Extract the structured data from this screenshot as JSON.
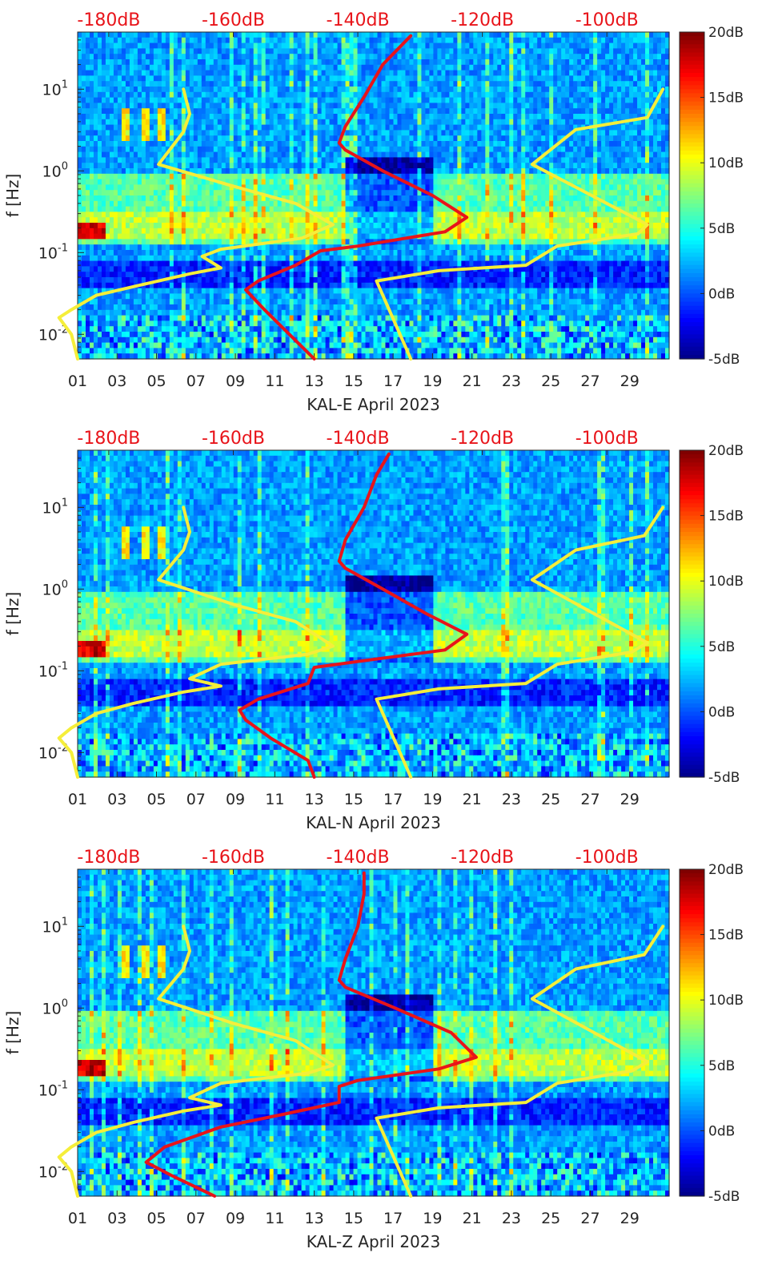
{
  "chart_data": [
    {
      "type": "heatmap",
      "xlabel": "KAL-E April 2023",
      "ylabel": "f [Hz]",
      "x_ticks": [
        "01",
        "03",
        "05",
        "07",
        "09",
        "11",
        "13",
        "15",
        "17",
        "19",
        "21",
        "23",
        "25",
        "27",
        "29"
      ],
      "xlim": [
        1,
        31
      ],
      "y_scale": "log",
      "ylim": [
        0.005,
        50
      ],
      "y_ticks": [
        {
          "base": "10",
          "exp": "-2",
          "value": 0.01
        },
        {
          "base": "10",
          "exp": "-1",
          "value": 0.1
        },
        {
          "base": "10",
          "exp": "0",
          "value": 1
        },
        {
          "base": "10",
          "exp": "1",
          "value": 10
        }
      ],
      "top_axis_labels": [
        "-180dB",
        "-160dB",
        "-140dB",
        "-120dB",
        "-100dB"
      ],
      "top_axis_label_color": "#e8141a",
      "top_axis_range_dB": [
        -185,
        -90
      ],
      "colorbar": {
        "labels": [
          "20dB",
          "15dB",
          "10dB",
          "5dB",
          "0dB",
          "-5dB"
        ],
        "range_dB": [
          -5,
          20
        ],
        "colormap": "jet"
      },
      "series": [
        {
          "color": "#e8141a",
          "points": [
            [
              -131.5,
              45
            ],
            [
              -136,
              20
            ],
            [
              -139,
              8
            ],
            [
              -142,
              3.5
            ],
            [
              -143,
              2.2
            ],
            [
              -142,
              1.8
            ],
            [
              -136,
              1
            ],
            [
              -128,
              0.5
            ],
            [
              -122.5,
              0.27
            ],
            [
              -126,
              0.18
            ],
            [
              -140,
              0.12
            ],
            [
              -146,
              0.105
            ],
            [
              -150,
              0.07
            ],
            [
              -156,
              0.045
            ],
            [
              -158,
              0.035
            ],
            [
              -155,
              0.02
            ],
            [
              -151,
              0.01
            ],
            [
              -147,
              0.005
            ]
          ]
        },
        {
          "color": "#f5ee3a",
          "points": [
            [
              -168,
              10
            ],
            [
              -167,
              5
            ],
            [
              -168,
              3
            ],
            [
              -172,
              1.2
            ],
            [
              -160,
              0.65
            ],
            [
              -150,
              0.4
            ],
            [
              -144,
              0.22
            ],
            [
              -149,
              0.15
            ],
            [
              -162,
              0.11
            ],
            [
              -165,
              0.09
            ],
            [
              -162,
              0.065
            ],
            [
              -167,
              0.055
            ],
            [
              -175,
              0.04
            ],
            [
              -182,
              0.03
            ],
            [
              -186,
              0.02
            ],
            [
              -188,
              0.016
            ],
            [
              -186,
              0.01
            ],
            [
              -185,
              0.005
            ]
          ]
        },
        {
          "color": "#f5ee3a",
          "points": [
            [
              -91,
              10
            ],
            [
              -93.5,
              4.5
            ],
            [
              -105,
              3.2
            ],
            [
              -112,
              1.2
            ],
            [
              -93.5,
              0.22
            ],
            [
              -95,
              0.17
            ],
            [
              -108,
              0.12
            ],
            [
              -113,
              0.07
            ],
            [
              -127,
              0.06
            ],
            [
              -137,
              0.045
            ],
            [
              -131.5,
              0.005
            ]
          ]
        }
      ]
    },
    {
      "type": "heatmap",
      "xlabel": "KAL-N April 2023",
      "ylabel": "f [Hz]",
      "x_ticks": [
        "01",
        "03",
        "05",
        "07",
        "09",
        "11",
        "13",
        "15",
        "17",
        "19",
        "21",
        "23",
        "25",
        "27",
        "29"
      ],
      "xlim": [
        1,
        31
      ],
      "y_scale": "log",
      "ylim": [
        0.005,
        50
      ],
      "y_ticks": [
        {
          "base": "10",
          "exp": "-2",
          "value": 0.01
        },
        {
          "base": "10",
          "exp": "-1",
          "value": 0.1
        },
        {
          "base": "10",
          "exp": "0",
          "value": 1
        },
        {
          "base": "10",
          "exp": "1",
          "value": 10
        }
      ],
      "top_axis_labels": [
        "-180dB",
        "-160dB",
        "-140dB",
        "-120dB",
        "-100dB"
      ],
      "top_axis_label_color": "#e8141a",
      "top_axis_range_dB": [
        -185,
        -90
      ],
      "colorbar": {
        "labels": [
          "20dB",
          "15dB",
          "10dB",
          "5dB",
          "0dB",
          "-5dB"
        ],
        "range_dB": [
          -5,
          20
        ],
        "colormap": "jet"
      },
      "series": [
        {
          "color": "#e8141a",
          "points": [
            [
              -135,
              45
            ],
            [
              -137,
              25
            ],
            [
              -139,
              10
            ],
            [
              -142,
              4
            ],
            [
              -143,
              2.2
            ],
            [
              -142,
              1.8
            ],
            [
              -136,
              1
            ],
            [
              -129,
              0.5
            ],
            [
              -122.5,
              0.28
            ],
            [
              -126,
              0.18
            ],
            [
              -140,
              0.13
            ],
            [
              -147,
              0.11
            ],
            [
              -148,
              0.07
            ],
            [
              -156,
              0.045
            ],
            [
              -159,
              0.033
            ],
            [
              -158,
              0.025
            ],
            [
              -154,
              0.015
            ],
            [
              -148,
              0.008
            ],
            [
              -147,
              0.005
            ]
          ]
        },
        {
          "color": "#f5ee3a",
          "points": [
            [
              -168,
              10
            ],
            [
              -167,
              5
            ],
            [
              -168,
              3
            ],
            [
              -172,
              1.3
            ],
            [
              -160,
              0.65
            ],
            [
              -150,
              0.4
            ],
            [
              -144,
              0.2
            ],
            [
              -148,
              0.16
            ],
            [
              -162,
              0.12
            ],
            [
              -167,
              0.08
            ],
            [
              -162,
              0.065
            ],
            [
              -168,
              0.055
            ],
            [
              -176,
              0.04
            ],
            [
              -182,
              0.03
            ],
            [
              -186,
              0.02
            ],
            [
              -188,
              0.015
            ],
            [
              -186,
              0.01
            ],
            [
              -185,
              0.005
            ]
          ]
        },
        {
          "color": "#f5ee3a",
          "points": [
            [
              -91,
              10
            ],
            [
              -94,
              4.5
            ],
            [
              -105,
              3
            ],
            [
              -112,
              1.3
            ],
            [
              -93.5,
              0.22
            ],
            [
              -96,
              0.17
            ],
            [
              -108,
              0.12
            ],
            [
              -113,
              0.07
            ],
            [
              -127,
              0.06
            ],
            [
              -137,
              0.045
            ],
            [
              -131.5,
              0.005
            ]
          ]
        }
      ]
    },
    {
      "type": "heatmap",
      "xlabel": "KAL-Z April 2023",
      "ylabel": "f [Hz]",
      "x_ticks": [
        "01",
        "03",
        "05",
        "07",
        "09",
        "11",
        "13",
        "15",
        "17",
        "19",
        "21",
        "23",
        "25",
        "27",
        "29"
      ],
      "xlim": [
        1,
        31
      ],
      "y_scale": "log",
      "ylim": [
        0.005,
        50
      ],
      "y_ticks": [
        {
          "base": "10",
          "exp": "-2",
          "value": 0.01
        },
        {
          "base": "10",
          "exp": "-1",
          "value": 0.1
        },
        {
          "base": "10",
          "exp": "0",
          "value": 1
        },
        {
          "base": "10",
          "exp": "1",
          "value": 10
        }
      ],
      "top_axis_labels": [
        "-180dB",
        "-160dB",
        "-140dB",
        "-120dB",
        "-100dB"
      ],
      "top_axis_label_color": "#e8141a",
      "top_axis_range_dB": [
        -185,
        -90
      ],
      "colorbar": {
        "labels": [
          "20dB",
          "15dB",
          "10dB",
          "5dB",
          "0dB",
          "-5dB"
        ],
        "range_dB": [
          -5,
          20
        ],
        "colormap": "jet"
      },
      "series": [
        {
          "color": "#e8141a",
          "points": [
            [
              -139,
              45
            ],
            [
              -139,
              25
            ],
            [
              -140,
              10
            ],
            [
              -142,
              4
            ],
            [
              -143,
              2.2
            ],
            [
              -142,
              1.8
            ],
            [
              -134,
              1
            ],
            [
              -125,
              0.5
            ],
            [
              -121,
              0.25
            ],
            [
              -127,
              0.18
            ],
            [
              -140,
              0.13
            ],
            [
              -143,
              0.11
            ],
            [
              -143,
              0.07
            ],
            [
              -152,
              0.05
            ],
            [
              -162,
              0.035
            ],
            [
              -171,
              0.02
            ],
            [
              -174,
              0.013
            ],
            [
              -170,
              0.009
            ],
            [
              -163,
              0.005
            ]
          ]
        },
        {
          "color": "#f5ee3a",
          "points": [
            [
              -168,
              10
            ],
            [
              -167,
              5
            ],
            [
              -168,
              3
            ],
            [
              -172,
              1.3
            ],
            [
              -160,
              0.65
            ],
            [
              -150,
              0.4
            ],
            [
              -144,
              0.2
            ],
            [
              -148,
              0.16
            ],
            [
              -162,
              0.12
            ],
            [
              -167,
              0.08
            ],
            [
              -162,
              0.065
            ],
            [
              -168,
              0.055
            ],
            [
              -176,
              0.04
            ],
            [
              -182,
              0.03
            ],
            [
              -186,
              0.02
            ],
            [
              -188,
              0.015
            ],
            [
              -186,
              0.01
            ],
            [
              -185,
              0.005
            ]
          ]
        },
        {
          "color": "#f5ee3a",
          "points": [
            [
              -91,
              10
            ],
            [
              -94,
              4.5
            ],
            [
              -105,
              3
            ],
            [
              -112,
              1.3
            ],
            [
              -93.5,
              0.22
            ],
            [
              -96,
              0.17
            ],
            [
              -108,
              0.12
            ],
            [
              -113,
              0.07
            ],
            [
              -127,
              0.06
            ],
            [
              -137,
              0.045
            ],
            [
              -131.5,
              0.005
            ]
          ]
        }
      ]
    }
  ]
}
